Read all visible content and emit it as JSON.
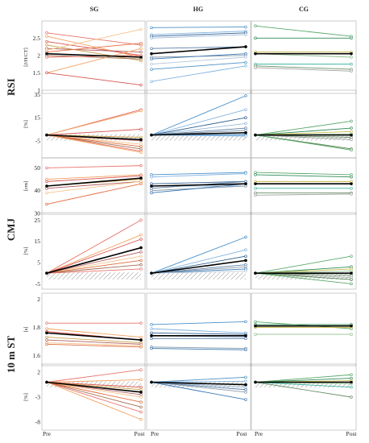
{
  "figure": {
    "groups": [
      "SG",
      "HG",
      "CG"
    ],
    "time_points": [
      "Pre",
      "Post"
    ],
    "row_labels": [
      "RSI",
      "CMJ",
      "10 m ST"
    ],
    "colors": {
      "mean": "#000000",
      "zero_hatch": "#555555",
      "frame": "#999999",
      "sg_palette": [
        "#e8736b",
        "#f2a05f",
        "#d9534f",
        "#c8a24a",
        "#b35f5f",
        "#f5c28a",
        "#e36b3c",
        "#9c6b4c"
      ],
      "hg_palette": [
        "#4a90c8",
        "#7fb2e0",
        "#2f5f8f",
        "#9ab8d4",
        "#5a7fa8",
        "#8899aa",
        "#3c78b4",
        "#b7c9dc"
      ],
      "cg_palette": [
        "#5aa86a",
        "#2e8b57",
        "#c8b84a",
        "#8fbf8f",
        "#3fb6a0",
        "#6a8e6a",
        "#a0a0a0",
        "#4f7f4f"
      ]
    }
  },
  "chart_data": [
    {
      "type": "line",
      "name": "RSI absolute",
      "yunit": "[J/H/CT]",
      "ylim": [
        1.0,
        2.9
      ],
      "yticks": [
        1.0,
        1.5,
        2.0,
        2.5
      ],
      "zero_hatch": false,
      "groups": {
        "SG": {
          "mean": [
            2.05,
            1.95
          ],
          "subjects": [
            [
              2.65,
              2.3
            ],
            [
              2.55,
              1.95
            ],
            [
              2.4,
              2.0
            ],
            [
              2.3,
              1.85
            ],
            [
              2.2,
              2.1
            ],
            [
              2.15,
              2.75
            ],
            [
              2.1,
              2.35
            ],
            [
              2.0,
              1.9
            ],
            [
              1.95,
              2.0
            ],
            [
              1.5,
              2.2
            ],
            [
              1.5,
              1.15
            ]
          ]
        },
        "HG": {
          "mean": [
            2.05,
            2.25
          ],
          "subjects": [
            [
              2.8,
              2.82
            ],
            [
              2.6,
              2.7
            ],
            [
              2.55,
              2.65
            ],
            [
              2.5,
              2.6
            ],
            [
              2.2,
              2.25
            ],
            [
              1.95,
              2.0
            ],
            [
              1.9,
              2.05
            ],
            [
              1.75,
              1.95
            ],
            [
              1.6,
              1.8
            ],
            [
              1.25,
              1.7
            ]
          ]
        },
        "CG": {
          "mean": [
            2.05,
            2.05
          ],
          "subjects": [
            [
              2.85,
              2.55
            ],
            [
              2.5,
              2.5
            ],
            [
              2.1,
              2.1
            ],
            [
              2.05,
              1.95
            ],
            [
              1.75,
              1.75
            ],
            [
              1.7,
              1.6
            ],
            [
              1.65,
              1.55
            ]
          ]
        }
      }
    },
    {
      "type": "line",
      "name": "RSI change",
      "yunit": "[%]",
      "ylim": [
        -17,
        36
      ],
      "yticks": [
        -5,
        15,
        35
      ],
      "zero_hatch": true,
      "groups": {
        "SG": {
          "mean": [
            0,
            -4
          ],
          "subjects": [
            [
              0,
              22
            ],
            [
              0,
              21
            ],
            [
              0,
              5
            ],
            [
              0,
              -2
            ],
            [
              0,
              -5
            ],
            [
              0,
              -8
            ],
            [
              0,
              -10
            ],
            [
              0,
              -12
            ],
            [
              0,
              -14
            ],
            [
              0,
              -15
            ]
          ]
        },
        "HG": {
          "mean": [
            0,
            2
          ],
          "subjects": [
            [
              0,
              34
            ],
            [
              0,
              22
            ],
            [
              0,
              15
            ],
            [
              0,
              10
            ],
            [
              0,
              6
            ],
            [
              0,
              4
            ],
            [
              0,
              2
            ],
            [
              0,
              1
            ],
            [
              0,
              0
            ],
            [
              0,
              -1
            ]
          ]
        },
        "CG": {
          "mean": [
            0,
            0
          ],
          "subjects": [
            [
              0,
              12
            ],
            [
              0,
              6
            ],
            [
              0,
              3
            ],
            [
              0,
              1
            ],
            [
              0,
              0
            ],
            [
              0,
              -2
            ],
            [
              0,
              -4
            ],
            [
              0,
              -12
            ],
            [
              0,
              -13
            ]
          ]
        }
      }
    },
    {
      "type": "line",
      "name": "CMJ absolute",
      "yunit": "[cm]",
      "ylim": [
        31,
        53
      ],
      "yticks": [
        30,
        40,
        50
      ],
      "zero_hatch": false,
      "groups": {
        "SG": {
          "mean": [
            42,
            45.5
          ],
          "subjects": [
            [
              50,
              51
            ],
            [
              45,
              47
            ],
            [
              44,
              46.5
            ],
            [
              42,
              45
            ],
            [
              41,
              44
            ],
            [
              39,
              44
            ],
            [
              34,
              43
            ]
          ]
        },
        "HG": {
          "mean": [
            42,
            43
          ],
          "subjects": [
            [
              47,
              48
            ],
            [
              46,
              47.5
            ],
            [
              43,
              44
            ],
            [
              42,
              42
            ],
            [
              41,
              44
            ],
            [
              40,
              42
            ],
            [
              39,
              43
            ]
          ]
        },
        "CG": {
          "mean": [
            43,
            43
          ],
          "subjects": [
            [
              48,
              47
            ],
            [
              47,
              46
            ],
            [
              44,
              44
            ],
            [
              43,
              43
            ],
            [
              41,
              41
            ],
            [
              39,
              39
            ],
            [
              38,
              38.5
            ]
          ]
        }
      }
    },
    {
      "type": "line",
      "name": "CMJ change",
      "yunit": "[%]",
      "ylim": [
        -6,
        27
      ],
      "yticks": [
        -5,
        5,
        15,
        25
      ],
      "zero_hatch": true,
      "groups": {
        "SG": {
          "mean": [
            0,
            12
          ],
          "subjects": [
            [
              0,
              25
            ],
            [
              0,
              18
            ],
            [
              0,
              16
            ],
            [
              0,
              12
            ],
            [
              0,
              10
            ],
            [
              0,
              8
            ],
            [
              0,
              6
            ],
            [
              0,
              4
            ],
            [
              0,
              2
            ]
          ]
        },
        "HG": {
          "mean": [
            0,
            6
          ],
          "subjects": [
            [
              0,
              17
            ],
            [
              0,
              11
            ],
            [
              0,
              8
            ],
            [
              0,
              6
            ],
            [
              0,
              4
            ],
            [
              0,
              3
            ],
            [
              0,
              2
            ],
            [
              0,
              1
            ]
          ]
        },
        "CG": {
          "mean": [
            0,
            0
          ],
          "subjects": [
            [
              0,
              8
            ],
            [
              0,
              3
            ],
            [
              0,
              2
            ],
            [
              0,
              1
            ],
            [
              0,
              0
            ],
            [
              0,
              -1
            ],
            [
              0,
              -2
            ],
            [
              0,
              -3
            ],
            [
              0,
              -5
            ]
          ]
        }
      }
    },
    {
      "type": "line",
      "name": "10 m ST absolute",
      "yunit": "[s]",
      "ylim": [
        1.55,
        2.02
      ],
      "yticks": [
        1.6,
        1.8,
        2.0
      ],
      "zero_hatch": false,
      "groups": {
        "SG": {
          "mean": [
            1.76,
            1.71
          ],
          "subjects": [
            [
              1.83,
              1.83
            ],
            [
              1.79,
              1.73
            ],
            [
              1.77,
              1.71
            ],
            [
              1.73,
              1.69
            ],
            [
              1.71,
              1.68
            ],
            [
              1.69,
              1.67
            ],
            [
              1.68,
              1.66
            ]
          ]
        },
        "HG": {
          "mean": [
            1.74,
            1.74
          ],
          "subjects": [
            [
              1.82,
              1.84
            ],
            [
              1.79,
              1.76
            ],
            [
              1.76,
              1.75
            ],
            [
              1.74,
              1.73
            ],
            [
              1.72,
              1.72
            ],
            [
              1.66,
              1.65
            ],
            [
              1.65,
              1.64
            ]
          ]
        },
        "CG": {
          "mean": [
            1.81,
            1.81
          ],
          "subjects": [
            [
              1.84,
              1.79
            ],
            [
              1.82,
              1.82
            ],
            [
              1.8,
              1.8
            ],
            [
              1.75,
              1.75
            ]
          ]
        }
      }
    },
    {
      "type": "line",
      "name": "10 m ST change",
      "yunit": "[%]",
      "ylim": [
        -9,
        3
      ],
      "yticks": [
        -8,
        -3,
        2
      ],
      "zero_hatch": true,
      "groups": {
        "SG": {
          "mean": [
            0,
            -2
          ],
          "subjects": [
            [
              0,
              2.5
            ],
            [
              0,
              0.5
            ],
            [
              0,
              -1
            ],
            [
              0,
              -1.5
            ],
            [
              0,
              -2.5
            ],
            [
              0,
              -3
            ],
            [
              0,
              -4
            ],
            [
              0,
              -5
            ],
            [
              0,
              -6
            ],
            [
              0,
              -7.5
            ]
          ]
        },
        "HG": {
          "mean": [
            0,
            -0.5
          ],
          "subjects": [
            [
              0,
              1
            ],
            [
              0,
              0.2
            ],
            [
              0,
              -0.5
            ],
            [
              0,
              -1
            ],
            [
              0,
              -1.5
            ],
            [
              0,
              -2
            ],
            [
              0,
              -3.5
            ]
          ]
        },
        "CG": {
          "mean": [
            0,
            0
          ],
          "subjects": [
            [
              0,
              1.5
            ],
            [
              0,
              0.8
            ],
            [
              0,
              0.3
            ],
            [
              0,
              -0.3
            ],
            [
              0,
              -1
            ],
            [
              0,
              -3
            ]
          ]
        }
      }
    }
  ]
}
